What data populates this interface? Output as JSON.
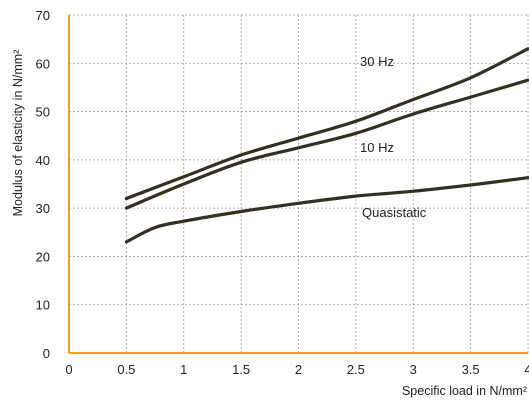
{
  "chart_data": {
    "type": "line",
    "xlabel": "Specific load in N/mm²",
    "ylabel": "Modulus of elasticity in N/mm²",
    "xlim": [
      0,
      4
    ],
    "ylim": [
      0,
      70
    ],
    "xticks": [
      0,
      0.5,
      1,
      1.5,
      2,
      2.5,
      3,
      3.5,
      4
    ],
    "xtick_labels": [
      "0",
      "0.5",
      "1",
      "1.5",
      "2",
      "2.5",
      "3",
      "3.5",
      "4"
    ],
    "yticks": [
      0,
      10,
      20,
      30,
      40,
      50,
      60,
      70
    ],
    "ytick_labels": [
      "0",
      "10",
      "20",
      "30",
      "40",
      "50",
      "60",
      "70"
    ],
    "grid": true,
    "axis_color": "#f0a020",
    "series": [
      {
        "name": "30 Hz",
        "color": "#33301f",
        "x": [
          0.5,
          1.0,
          1.5,
          2.0,
          2.5,
          3.0,
          3.5,
          4.0
        ],
        "y": [
          32,
          36.5,
          41,
          44.5,
          48,
          52.5,
          57,
          63
        ]
      },
      {
        "name": "10 Hz",
        "color": "#33301f",
        "x": [
          0.5,
          1.0,
          1.5,
          2.0,
          2.5,
          3.0,
          3.5,
          4.0
        ],
        "y": [
          30,
          35,
          39.5,
          42.5,
          45.5,
          49.5,
          53,
          56.5
        ]
      },
      {
        "name": "Quasistatic",
        "color": "#33301f",
        "x": [
          0.5,
          0.75,
          1.0,
          1.5,
          2.0,
          2.5,
          3.0,
          3.5,
          4.0
        ],
        "y": [
          23,
          26,
          27.3,
          29.3,
          31,
          32.5,
          33.5,
          34.8,
          36.3
        ]
      }
    ]
  }
}
